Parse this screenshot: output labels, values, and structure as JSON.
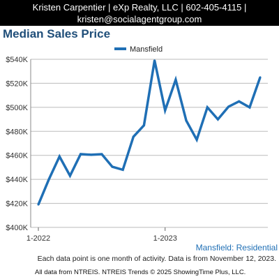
{
  "header": {
    "line1": "Kristen Carpentier | eXp Realty, LLC | 602-405-4115 |",
    "line2": "kristen@socialagentgroup.com"
  },
  "footer": {
    "series_label": "Mansfield: Residential",
    "note": "Each data point is one month of activity. Data is from November 12, 2023.",
    "source": "All data from NTREIS. NTREIS Trends © 2025 ShowingTime Plus, LLC."
  },
  "colors": {
    "line": "#1f6fb5",
    "title": "#1f4e79",
    "grid": "#bbbbbb",
    "header_bg": "#000000"
  },
  "chart_data": {
    "type": "line",
    "title": "Median Sales Price",
    "legend": "top-center",
    "grid": true,
    "ylim": [
      400000,
      540000
    ],
    "y_ticks": [
      400000,
      420000,
      440000,
      460000,
      480000,
      500000,
      520000,
      540000
    ],
    "y_tick_labels": [
      "$400K",
      "$420K",
      "$440K",
      "$460K",
      "$480K",
      "$500K",
      "$520K",
      "$540K"
    ],
    "x_tick_labels": [
      {
        "index": 0,
        "label": "1-2022"
      },
      {
        "index": 12,
        "label": "1-2023"
      }
    ],
    "months": [
      "1-2022",
      "2-2022",
      "3-2022",
      "4-2022",
      "5-2022",
      "6-2022",
      "7-2022",
      "8-2022",
      "9-2022",
      "10-2022",
      "11-2022",
      "12-2022",
      "1-2023",
      "2-2023",
      "3-2023",
      "4-2023",
      "5-2023",
      "6-2023",
      "7-2023",
      "8-2023",
      "9-2023",
      "10-2023"
    ],
    "series": [
      {
        "name": "Mansfield",
        "values": [
          419000,
          440000,
          459000,
          443000,
          461000,
          460500,
          461000,
          450500,
          448000,
          475500,
          485000,
          539000,
          497500,
          523000,
          489000,
          473000,
          500000,
          490000,
          500500,
          505000,
          500000,
          525000
        ]
      }
    ]
  }
}
